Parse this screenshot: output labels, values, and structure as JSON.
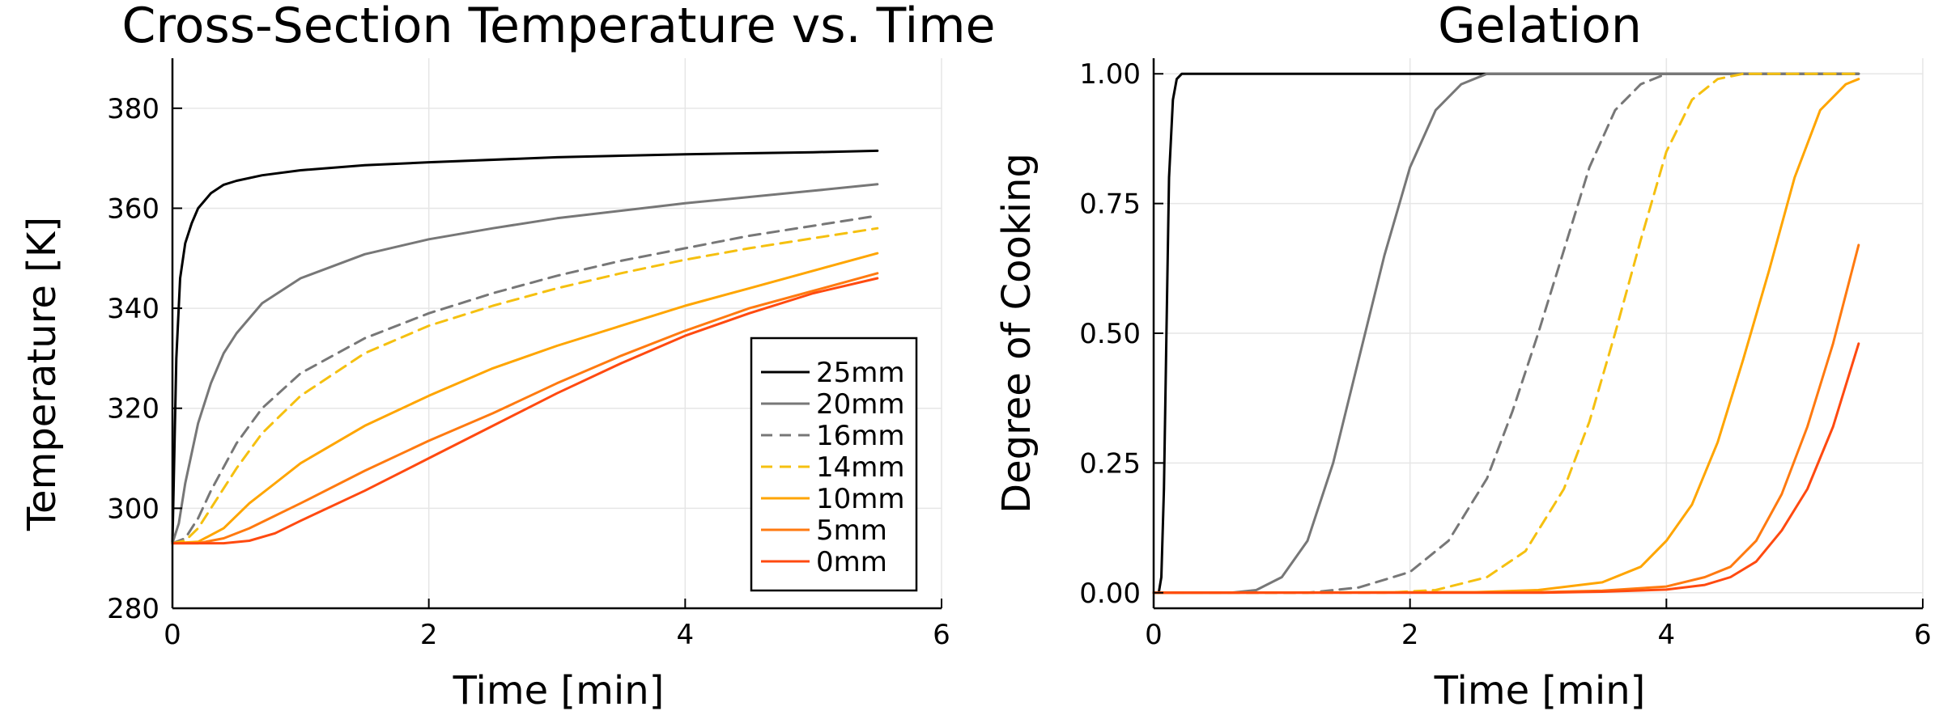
{
  "chart_data": [
    {
      "type": "line",
      "title": "Cross-Section Temperature vs. Time",
      "xlabel": "Time [min]",
      "ylabel": "Temperature [K]",
      "xlim": [
        0,
        6
      ],
      "ylim": [
        280,
        390
      ],
      "xticks": [
        0,
        2,
        4,
        6
      ],
      "yticks": [
        280,
        300,
        320,
        340,
        360,
        380
      ],
      "grid": true,
      "legend": "bottom-right",
      "series": [
        {
          "name": "25mm",
          "color": "#000000",
          "dash": false,
          "x": [
            0,
            0.03,
            0.06,
            0.1,
            0.15,
            0.2,
            0.3,
            0.4,
            0.5,
            0.7,
            1.0,
            1.5,
            2.0,
            3.0,
            4.0,
            5.0,
            5.5
          ],
          "y": [
            293,
            330,
            346,
            353,
            357,
            360,
            363,
            364.7,
            365.5,
            366.6,
            367.6,
            368.6,
            369.2,
            370.2,
            370.8,
            371.2,
            371.5
          ]
        },
        {
          "name": "20mm",
          "color": "#777777",
          "dash": false,
          "x": [
            0,
            0.05,
            0.1,
            0.2,
            0.3,
            0.4,
            0.5,
            0.7,
            1.0,
            1.5,
            2.0,
            2.5,
            3.0,
            4.0,
            5.0,
            5.5
          ],
          "y": [
            293,
            297,
            305,
            317,
            325,
            331,
            335,
            341,
            346,
            350.8,
            353.8,
            356,
            358,
            361,
            363.5,
            364.8
          ]
        },
        {
          "name": "16mm",
          "color": "#777777",
          "dash": true,
          "x": [
            0,
            0.1,
            0.2,
            0.3,
            0.5,
            0.7,
            1.0,
            1.5,
            2.0,
            2.5,
            3.0,
            3.5,
            4.0,
            4.5,
            5.0,
            5.5
          ],
          "y": [
            293,
            294,
            298,
            303.5,
            313,
            320,
            327,
            334,
            339,
            343,
            346.5,
            349.5,
            352,
            354.5,
            356.5,
            358.5
          ]
        },
        {
          "name": "14mm",
          "color": "#F5C010",
          "dash": true,
          "x": [
            0,
            0.1,
            0.2,
            0.3,
            0.5,
            0.7,
            1.0,
            1.5,
            2.0,
            2.5,
            3.0,
            3.5,
            4.0,
            4.5,
            5.0,
            5.5
          ],
          "y": [
            293,
            293.5,
            296,
            300,
            308,
            315,
            322.5,
            331,
            336.5,
            340.5,
            344,
            347,
            349.7,
            352,
            354,
            356
          ]
        },
        {
          "name": "10mm",
          "color": "#FFA500",
          "dash": false,
          "x": [
            0,
            0.2,
            0.4,
            0.6,
            0.8,
            1.0,
            1.5,
            2.0,
            2.5,
            3.0,
            3.5,
            4.0,
            4.5,
            5.0,
            5.5
          ],
          "y": [
            293,
            293.3,
            296,
            301,
            305,
            309,
            316.5,
            322.5,
            328,
            332.5,
            336.5,
            340.5,
            344,
            347.5,
            351
          ]
        },
        {
          "name": "5mm",
          "color": "#FF7A10",
          "dash": false,
          "x": [
            0,
            0.2,
            0.4,
            0.6,
            0.8,
            1.0,
            1.5,
            2.0,
            2.5,
            3.0,
            3.5,
            4.0,
            4.5,
            5.0,
            5.5
          ],
          "y": [
            293,
            293,
            294,
            296,
            298.5,
            301,
            307.5,
            313.5,
            319,
            325,
            330.5,
            335.5,
            340,
            343.5,
            347
          ]
        },
        {
          "name": "0mm",
          "color": "#FF4A10",
          "dash": false,
          "x": [
            0,
            0.2,
            0.4,
            0.6,
            0.8,
            1.0,
            1.5,
            2.0,
            2.5,
            3.0,
            3.5,
            4.0,
            4.5,
            5.0,
            5.5
          ],
          "y": [
            293,
            293,
            293,
            293.5,
            295,
            297.5,
            303.5,
            310,
            316.5,
            323,
            329,
            334.5,
            339,
            343,
            346
          ]
        }
      ]
    },
    {
      "type": "line",
      "title": "Gelation",
      "xlabel": "Time [min]",
      "ylabel": "Degree of Cooking",
      "xlim": [
        0,
        6
      ],
      "ylim": [
        -0.03,
        1.03
      ],
      "xticks": [
        0,
        2,
        4,
        6
      ],
      "yticks": [
        0.0,
        0.25,
        0.5,
        0.75,
        1.0
      ],
      "ytick_labels": [
        "0.00",
        "0.25",
        "0.50",
        "0.75",
        "1.00"
      ],
      "grid": true,
      "series": [
        {
          "name": "25mm",
          "color": "#000000",
          "dash": false,
          "x": [
            0,
            0.04,
            0.06,
            0.08,
            0.1,
            0.12,
            0.15,
            0.18,
            0.22,
            0.25,
            0.3,
            1.0,
            3.0,
            5.5
          ],
          "y": [
            0,
            0,
            0.03,
            0.2,
            0.5,
            0.8,
            0.95,
            0.99,
            1.0,
            1.0,
            1.0,
            1.0,
            1.0,
            1.0
          ]
        },
        {
          "name": "20mm",
          "color": "#777777",
          "dash": false,
          "x": [
            0,
            0.6,
            0.8,
            1.0,
            1.2,
            1.4,
            1.6,
            1.8,
            2.0,
            2.2,
            2.4,
            2.6,
            2.8,
            3.5,
            5.5
          ],
          "y": [
            0,
            0,
            0.005,
            0.03,
            0.1,
            0.25,
            0.45,
            0.65,
            0.82,
            0.93,
            0.98,
            1.0,
            1.0,
            1.0,
            1.0
          ]
        },
        {
          "name": "16mm",
          "color": "#777777",
          "dash": true,
          "x": [
            0,
            1.2,
            1.6,
            2.0,
            2.3,
            2.6,
            2.8,
            3.0,
            3.2,
            3.4,
            3.6,
            3.8,
            4.0,
            4.5,
            5.5
          ],
          "y": [
            0,
            0,
            0.01,
            0.04,
            0.1,
            0.22,
            0.35,
            0.5,
            0.66,
            0.82,
            0.93,
            0.98,
            1.0,
            1.0,
            1.0
          ]
        },
        {
          "name": "14mm",
          "color": "#F5C010",
          "dash": true,
          "x": [
            0,
            1.8,
            2.2,
            2.6,
            2.9,
            3.2,
            3.4,
            3.6,
            3.8,
            4.0,
            4.2,
            4.4,
            4.6,
            5.5
          ],
          "y": [
            0,
            0,
            0.005,
            0.03,
            0.08,
            0.2,
            0.33,
            0.5,
            0.68,
            0.85,
            0.95,
            0.99,
            1.0,
            1.0
          ]
        },
        {
          "name": "10mm",
          "color": "#FFA500",
          "dash": false,
          "x": [
            0,
            2.5,
            3.0,
            3.5,
            3.8,
            4.0,
            4.2,
            4.4,
            4.6,
            4.8,
            5.0,
            5.2,
            5.4,
            5.5
          ],
          "y": [
            0,
            0.001,
            0.005,
            0.02,
            0.05,
            0.1,
            0.17,
            0.29,
            0.45,
            0.62,
            0.8,
            0.93,
            0.98,
            0.99
          ]
        },
        {
          "name": "5mm",
          "color": "#FF7A10",
          "dash": false,
          "x": [
            0,
            3.0,
            3.5,
            4.0,
            4.3,
            4.5,
            4.7,
            4.9,
            5.1,
            5.3,
            5.5
          ],
          "y": [
            0,
            0.001,
            0.004,
            0.012,
            0.03,
            0.05,
            0.1,
            0.19,
            0.32,
            0.48,
            0.67
          ]
        },
        {
          "name": "0mm",
          "color": "#FF4A10",
          "dash": false,
          "x": [
            0,
            3.0,
            3.5,
            4.0,
            4.3,
            4.5,
            4.7,
            4.9,
            5.1,
            5.3,
            5.5
          ],
          "y": [
            0,
            0,
            0.002,
            0.006,
            0.015,
            0.03,
            0.06,
            0.12,
            0.2,
            0.32,
            0.48
          ]
        }
      ]
    }
  ]
}
